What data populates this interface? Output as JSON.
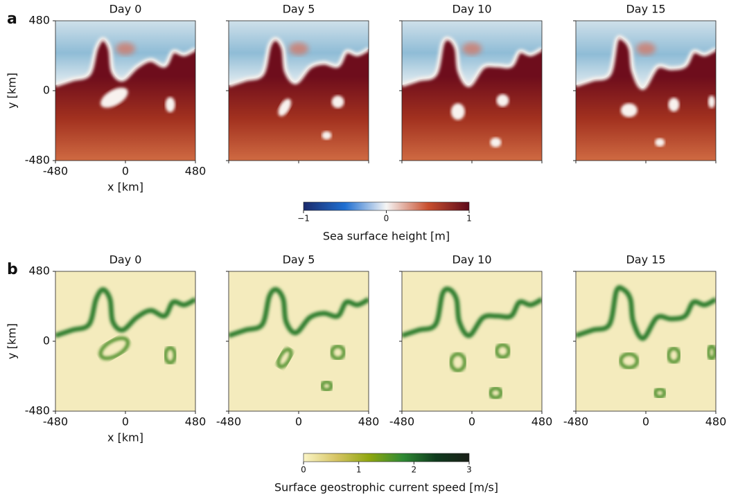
{
  "panels": [
    {
      "label": "a",
      "titles": [
        "Day 0",
        "Day 5",
        "Day 10",
        "Day 15"
      ],
      "xlabel": "x [km]",
      "ylabel": "y [km]",
      "xlim": [
        -480,
        480
      ],
      "ylim": [
        -480,
        480
      ],
      "xticks": [
        -480,
        0,
        480
      ],
      "yticks": [
        -480,
        0,
        480
      ],
      "sharex": true,
      "colorbar": {
        "label": "Sea surface height [m]",
        "lim": [
          -1,
          1
        ],
        "ticks": [
          {
            "value": -1,
            "label": "−1"
          },
          0,
          1
        ],
        "colors": [
          "#1b2a6b",
          "#1f6fd1",
          "#f5f5f5",
          "#c9502f",
          "#5e0a1a"
        ]
      }
    },
    {
      "label": "b",
      "titles": [
        "Day 0",
        "Day 5",
        "Day 10",
        "Day 15"
      ],
      "xlabel": "x [km]",
      "ylabel": "y [km]",
      "xlim": [
        -480,
        480
      ],
      "ylim": [
        -480,
        480
      ],
      "xticks": [
        -480,
        0,
        480
      ],
      "yticks": [
        -480,
        0,
        480
      ],
      "sharex": false,
      "colorbar": {
        "label": "Surface geostrophic current speed [m/s]",
        "lim": [
          0,
          3
        ],
        "ticks": [
          0,
          1,
          2,
          3
        ],
        "colors": [
          "#fbf5c6",
          "#d6c463",
          "#8ea60f",
          "#2f8a34",
          "#0f3b1e",
          "#1a1f17"
        ]
      }
    }
  ]
}
